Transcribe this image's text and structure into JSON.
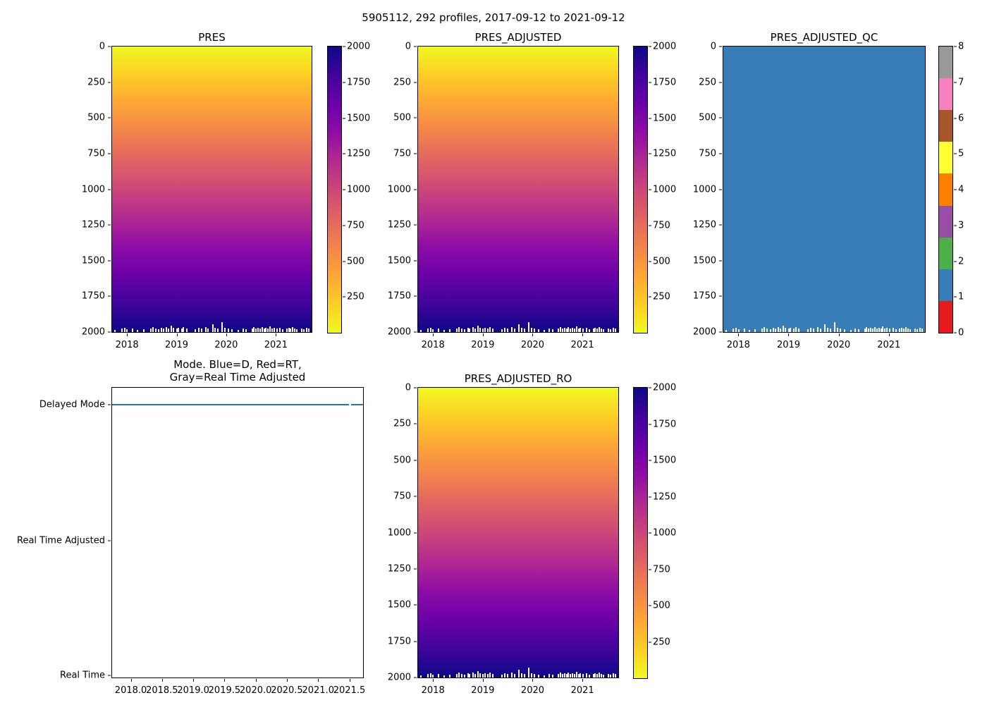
{
  "suptitle": "5905112, 292 profiles, 2017-09-12 to 2021-09-12",
  "colors": {
    "plasma_reversed_top_to_bottom": [
      "#f0f921",
      "#fcce25",
      "#fca636",
      "#f2844b",
      "#e16462",
      "#cc4778",
      "#b12a90",
      "#8f0da4",
      "#6a00a8",
      "#41049d",
      "#0d0887"
    ],
    "qc_constant_fill": "#377eb8",
    "mode_line_blue": "#1f77b4",
    "qc_palette_0_to_8": [
      "#e41a1c",
      "#377eb8",
      "#4daf4a",
      "#984ea3",
      "#ff7f00",
      "#ffff33",
      "#a65628",
      "#f781bf",
      "#999999"
    ]
  },
  "axes": {
    "time_range_years": [
      2017.7,
      2021.72
    ],
    "depth_range_dbar": [
      0,
      2000
    ],
    "qc_range": [
      0,
      8
    ]
  },
  "profile_bottom_marks": [
    [
      0.012,
      3
    ],
    [
      0.045,
      5
    ],
    [
      0.06,
      6
    ],
    [
      0.072,
      4
    ],
    [
      0.1,
      5
    ],
    [
      0.125,
      3
    ],
    [
      0.155,
      4
    ],
    [
      0.19,
      5
    ],
    [
      0.2,
      7
    ],
    [
      0.215,
      5
    ],
    [
      0.23,
      4
    ],
    [
      0.245,
      6
    ],
    [
      0.255,
      5
    ],
    [
      0.27,
      7
    ],
    [
      0.28,
      5
    ],
    [
      0.295,
      9
    ],
    [
      0.305,
      6
    ],
    [
      0.32,
      5
    ],
    [
      0.33,
      6
    ],
    [
      0.345,
      5
    ],
    [
      0.355,
      7
    ],
    [
      0.37,
      5
    ],
    [
      0.415,
      4
    ],
    [
      0.43,
      6
    ],
    [
      0.445,
      5
    ],
    [
      0.465,
      7
    ],
    [
      0.478,
      5
    ],
    [
      0.5,
      11
    ],
    [
      0.513,
      6
    ],
    [
      0.528,
      5
    ],
    [
      0.548,
      14
    ],
    [
      0.562,
      6
    ],
    [
      0.578,
      5
    ],
    [
      0.598,
      4
    ],
    [
      0.628,
      3
    ],
    [
      0.652,
      5
    ],
    [
      0.668,
      4
    ],
    [
      0.698,
      5
    ],
    [
      0.708,
      7
    ],
    [
      0.718,
      5
    ],
    [
      0.728,
      6
    ],
    [
      0.738,
      5
    ],
    [
      0.748,
      7
    ],
    [
      0.758,
      5
    ],
    [
      0.768,
      6
    ],
    [
      0.778,
      5
    ],
    [
      0.788,
      8
    ],
    [
      0.798,
      5
    ],
    [
      0.808,
      6
    ],
    [
      0.822,
      5
    ],
    [
      0.838,
      6
    ],
    [
      0.852,
      4
    ],
    [
      0.872,
      5
    ],
    [
      0.882,
      6
    ],
    [
      0.892,
      5
    ],
    [
      0.902,
      7
    ],
    [
      0.912,
      5
    ],
    [
      0.922,
      4
    ],
    [
      0.948,
      5
    ],
    [
      0.958,
      4
    ],
    [
      0.972,
      6
    ],
    [
      0.984,
      5
    ]
  ],
  "chart_data": [
    {
      "id": "pres",
      "type": "heatmap",
      "title": "PRES",
      "x_axis": "time",
      "x_ticks": [
        {
          "label": "2018",
          "v": 2018
        },
        {
          "label": "2019",
          "v": 2019
        },
        {
          "label": "2020",
          "v": 2020
        },
        {
          "label": "2021",
          "v": 2021
        }
      ],
      "y_ticks": [
        {
          "label": "0",
          "v": 0
        },
        {
          "label": "250",
          "v": 250
        },
        {
          "label": "500",
          "v": 500
        },
        {
          "label": "750",
          "v": 750
        },
        {
          "label": "1000",
          "v": 1000
        },
        {
          "label": "1250",
          "v": 1250
        },
        {
          "label": "1500",
          "v": 1500
        },
        {
          "label": "1750",
          "v": 1750
        },
        {
          "label": "2000",
          "v": 2000
        }
      ],
      "y_range": [
        0,
        2000
      ],
      "colormap": "plasma_r",
      "value_range": [
        0,
        2000
      ],
      "value_rule": "pressure equals depth: 0 dbar at surface (yellow) to 2000 dbar at bottom (dark blue), uniform across all 292 profiles",
      "colorbar_ticks": [
        {
          "label": "2000",
          "v": 2000
        },
        {
          "label": "1750",
          "v": 1750
        },
        {
          "label": "1500",
          "v": 1500
        },
        {
          "label": "1250",
          "v": 1250
        },
        {
          "label": "1000",
          "v": 1000
        },
        {
          "label": "750",
          "v": 750
        },
        {
          "label": "500",
          "v": 500
        },
        {
          "label": "250",
          "v": 250
        }
      ]
    },
    {
      "id": "pres_adjusted",
      "type": "heatmap",
      "title": "PRES_ADJUSTED",
      "x_axis": "time",
      "x_ticks": [
        {
          "label": "2018",
          "v": 2018
        },
        {
          "label": "2019",
          "v": 2019
        },
        {
          "label": "2020",
          "v": 2020
        },
        {
          "label": "2021",
          "v": 2021
        }
      ],
      "y_ticks": [
        {
          "label": "0",
          "v": 0
        },
        {
          "label": "250",
          "v": 250
        },
        {
          "label": "500",
          "v": 500
        },
        {
          "label": "750",
          "v": 750
        },
        {
          "label": "1000",
          "v": 1000
        },
        {
          "label": "1250",
          "v": 1250
        },
        {
          "label": "1500",
          "v": 1500
        },
        {
          "label": "1750",
          "v": 1750
        },
        {
          "label": "2000",
          "v": 2000
        }
      ],
      "y_range": [
        0,
        2000
      ],
      "colormap": "plasma_r",
      "value_range": [
        0,
        2000
      ],
      "value_rule": "adjusted pressure equals depth: 0 to 2000 dbar, identical gradient to PRES",
      "colorbar_ticks": [
        {
          "label": "2000",
          "v": 2000
        },
        {
          "label": "1750",
          "v": 1750
        },
        {
          "label": "1500",
          "v": 1500
        },
        {
          "label": "1250",
          "v": 1250
        },
        {
          "label": "1000",
          "v": 1000
        },
        {
          "label": "750",
          "v": 750
        },
        {
          "label": "500",
          "v": 500
        },
        {
          "label": "250",
          "v": 250
        }
      ]
    },
    {
      "id": "pres_adjusted_qc",
      "type": "heatmap",
      "title": "PRES_ADJUSTED_QC",
      "x_axis": "time",
      "x_ticks": [
        {
          "label": "2018",
          "v": 2018
        },
        {
          "label": "2019",
          "v": 2019
        },
        {
          "label": "2020",
          "v": 2020
        },
        {
          "label": "2021",
          "v": 2021
        }
      ],
      "y_ticks": [
        {
          "label": "0",
          "v": 0
        },
        {
          "label": "250",
          "v": 250
        },
        {
          "label": "500",
          "v": 500
        },
        {
          "label": "750",
          "v": 750
        },
        {
          "label": "1000",
          "v": 1000
        },
        {
          "label": "1250",
          "v": 1250
        },
        {
          "label": "1500",
          "v": 1500
        },
        {
          "label": "1750",
          "v": 1750
        },
        {
          "label": "2000",
          "v": 2000
        }
      ],
      "y_range": [
        0,
        2000
      ],
      "colormap": "Set1 discrete (QC flags 0-8)",
      "constant_value": 1,
      "value_rule": "QC flag = 1 (good) everywhere, solid blue",
      "colorbar_ticks": [
        {
          "label": "8",
          "v": 8
        },
        {
          "label": "7",
          "v": 7
        },
        {
          "label": "6",
          "v": 6
        },
        {
          "label": "5",
          "v": 5
        },
        {
          "label": "4",
          "v": 4
        },
        {
          "label": "3",
          "v": 3
        },
        {
          "label": "2",
          "v": 2
        },
        {
          "label": "1",
          "v": 1
        },
        {
          "label": "0",
          "v": 0
        }
      ]
    },
    {
      "id": "mode",
      "type": "line",
      "title_lines": [
        "Mode. Blue=D, Red=RT,",
        "Gray=Real Time Adjusted"
      ],
      "x_ticks": [
        {
          "label": "2018.0",
          "v": 2018.0
        },
        {
          "label": "2018.5",
          "v": 2018.5
        },
        {
          "label": "2019.0",
          "v": 2019.0
        },
        {
          "label": "2019.5",
          "v": 2019.5
        },
        {
          "label": "2020.0",
          "v": 2020.0
        },
        {
          "label": "2020.5",
          "v": 2020.5
        },
        {
          "label": "2021.0",
          "v": 2021.0
        },
        {
          "label": "2021.5",
          "v": 2021.5
        }
      ],
      "y_categories": [
        {
          "label": "Delayed Mode",
          "f": 0.058
        },
        {
          "label": "Real Time Adjusted",
          "f": 0.529
        },
        {
          "label": "Real Time",
          "f": 0.993
        }
      ],
      "series": [
        {
          "name": "data mode",
          "value": "Delayed Mode",
          "level_f": 0.058,
          "segments": [
            [
              0.0,
              0.945
            ],
            [
              0.953,
              1.0
            ]
          ]
        }
      ]
    },
    {
      "id": "pres_adjusted_ro",
      "type": "heatmap",
      "title": "PRES_ADJUSTED_RO",
      "x_axis": "time",
      "x_ticks": [
        {
          "label": "2018",
          "v": 2018
        },
        {
          "label": "2019",
          "v": 2019
        },
        {
          "label": "2020",
          "v": 2020
        },
        {
          "label": "2021",
          "v": 2021
        }
      ],
      "y_ticks": [
        {
          "label": "0",
          "v": 0
        },
        {
          "label": "250",
          "v": 250
        },
        {
          "label": "500",
          "v": 500
        },
        {
          "label": "750",
          "v": 750
        },
        {
          "label": "1000",
          "v": 1000
        },
        {
          "label": "1250",
          "v": 1250
        },
        {
          "label": "1500",
          "v": 1500
        },
        {
          "label": "1750",
          "v": 1750
        },
        {
          "label": "2000",
          "v": 2000
        }
      ],
      "y_range": [
        0,
        2000
      ],
      "colormap": "plasma_r",
      "value_range": [
        0,
        2000
      ],
      "value_rule": "raw-offset adjusted pressure equals depth: 0 to 2000 dbar, identical gradient to PRES",
      "colorbar_ticks": [
        {
          "label": "2000",
          "v": 2000
        },
        {
          "label": "1750",
          "v": 1750
        },
        {
          "label": "1500",
          "v": 1500
        },
        {
          "label": "1250",
          "v": 1250
        },
        {
          "label": "1000",
          "v": 1000
        },
        {
          "label": "750",
          "v": 750
        },
        {
          "label": "500",
          "v": 500
        },
        {
          "label": "250",
          "v": 250
        }
      ]
    }
  ]
}
